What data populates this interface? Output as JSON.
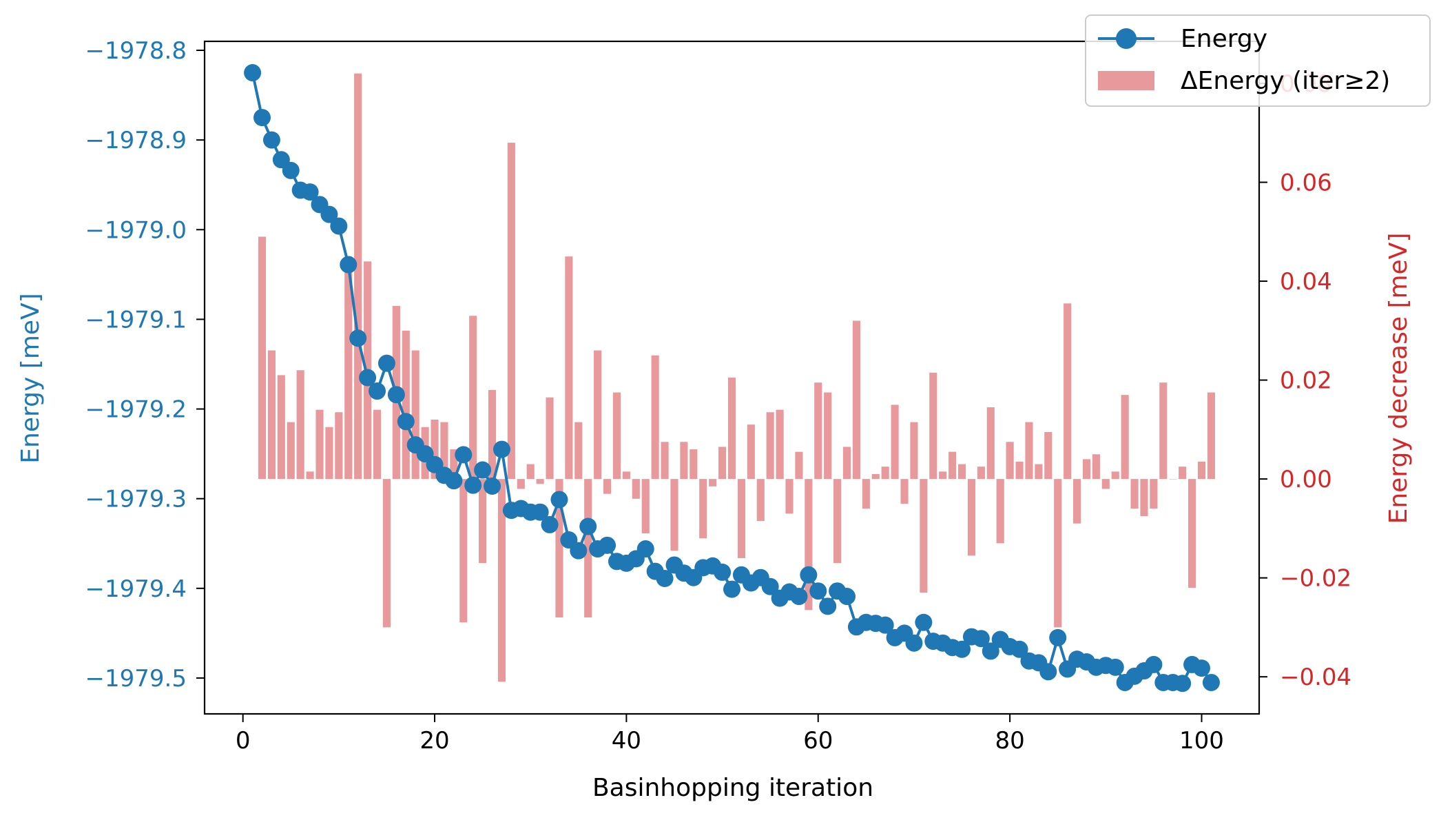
{
  "chart_data": {
    "type": "line",
    "xlabel": "Basinhopping iteration",
    "y_left_label": "Energy [meV]",
    "y_right_label": "Energy decrease [meV]",
    "xlim": [
      -4,
      106
    ],
    "y_left_lim": [
      -1979.54,
      -1978.79
    ],
    "y_right_lim": [
      -0.0475,
      0.0885
    ],
    "x_ticks": [
      0,
      20,
      40,
      60,
      80,
      100
    ],
    "x_tick_labels": [
      "0",
      "20",
      "40",
      "60",
      "80",
      "100"
    ],
    "y_left_ticks": [
      -1978.8,
      -1978.9,
      -1979.0,
      -1979.1,
      -1979.2,
      -1979.3,
      -1979.4,
      -1979.5
    ],
    "y_left_tick_labels": [
      "−1978.8",
      "−1978.9",
      "−1979.0",
      "−1979.1",
      "−1979.2",
      "−1979.3",
      "−1979.4",
      "−1979.5"
    ],
    "y_right_ticks": [
      0.08,
      0.06,
      0.04,
      0.02,
      0.0,
      -0.02,
      -0.04
    ],
    "y_right_tick_labels": [
      "0.08",
      "0.06",
      "0.04",
      "0.02",
      "0.00",
      "−0.02",
      "−0.04"
    ],
    "legend_position": "top-right",
    "grid": false,
    "colors": {
      "energy": "#1f77b4",
      "delta": "#e8999b",
      "left_axis": "#1f77b4",
      "right_axis": "#d62728",
      "axes": "#000000"
    },
    "series": [
      {
        "name": "Energy",
        "kind": "line-markers",
        "x": [
          1,
          2,
          3,
          4,
          5,
          6,
          7,
          8,
          9,
          10,
          11,
          12,
          13,
          14,
          15,
          16,
          17,
          18,
          19,
          20,
          21,
          22,
          23,
          24,
          25,
          26,
          27,
          28,
          29,
          30,
          31,
          32,
          33,
          34,
          35,
          36,
          37,
          38,
          39,
          40,
          41,
          42,
          43,
          44,
          45,
          46,
          47,
          48,
          49,
          50,
          51,
          52,
          53,
          54,
          55,
          56,
          57,
          58,
          59,
          60,
          61,
          62,
          63,
          64,
          65,
          66,
          67,
          68,
          69,
          70,
          71,
          72,
          73,
          74,
          75,
          76,
          77,
          78,
          79,
          80,
          81,
          82,
          83,
          84,
          85,
          86,
          87,
          88,
          89,
          90,
          91,
          92,
          93,
          94,
          95,
          96,
          97,
          98,
          99,
          100,
          101
        ],
        "values": [
          -1978.825,
          -1978.875,
          -1978.9,
          -1978.922,
          -1978.934,
          -1978.956,
          -1978.958,
          -1978.972,
          -1978.983,
          -1978.996,
          -1979.039,
          -1979.121,
          -1979.165,
          -1979.18,
          -1979.149,
          -1979.184,
          -1979.214,
          -1979.24,
          -1979.25,
          -1979.262,
          -1979.274,
          -1979.28,
          -1979.251,
          -1979.285,
          -1979.268,
          -1979.286,
          -1979.245,
          -1979.313,
          -1979.311,
          -1979.315,
          -1979.315,
          -1979.329,
          -1979.301,
          -1979.346,
          -1979.358,
          -1979.331,
          -1979.356,
          -1979.352,
          -1979.37,
          -1979.372,
          -1979.367,
          -1979.356,
          -1979.381,
          -1979.389,
          -1979.374,
          -1979.383,
          -1979.388,
          -1979.377,
          -1979.375,
          -1979.382,
          -1979.401,
          -1979.385,
          -1979.394,
          -1979.388,
          -1979.398,
          -1979.411,
          -1979.404,
          -1979.409,
          -1979.385,
          -1979.403,
          -1979.42,
          -1979.403,
          -1979.409,
          -1979.443,
          -1979.438,
          -1979.439,
          -1979.441,
          -1979.455,
          -1979.45,
          -1979.461,
          -1979.438,
          -1979.459,
          -1979.461,
          -1979.466,
          -1979.468,
          -1979.454,
          -1979.456,
          -1979.47,
          -1979.457,
          -1979.465,
          -1979.468,
          -1979.481,
          -1979.483,
          -1979.493,
          -1979.455,
          -1979.49,
          -1979.479,
          -1979.482,
          -1979.488,
          -1979.486,
          -1979.488,
          -1979.505,
          -1979.498,
          -1979.492,
          -1979.485,
          -1979.505,
          -1979.505,
          -1979.506,
          -1979.485,
          -1979.489,
          -1979.505
        ]
      },
      {
        "name": "ΔEnergy (iter≥2)",
        "kind": "bar",
        "axis": "right",
        "x": [
          2,
          3,
          4,
          5,
          6,
          7,
          8,
          9,
          10,
          11,
          12,
          13,
          14,
          15,
          16,
          17,
          18,
          19,
          20,
          21,
          22,
          23,
          24,
          25,
          26,
          27,
          28,
          29,
          30,
          31,
          32,
          33,
          34,
          35,
          36,
          37,
          38,
          39,
          40,
          41,
          42,
          43,
          44,
          45,
          46,
          47,
          48,
          49,
          50,
          51,
          52,
          53,
          54,
          55,
          56,
          57,
          58,
          59,
          60,
          61,
          62,
          63,
          64,
          65,
          66,
          67,
          68,
          69,
          70,
          71,
          72,
          73,
          74,
          75,
          76,
          77,
          78,
          79,
          80,
          81,
          82,
          83,
          84,
          85,
          86,
          87,
          88,
          89,
          90,
          91,
          92,
          93,
          94,
          95,
          96,
          97,
          98,
          99,
          100,
          101
        ],
        "values": [
          0.049,
          0.026,
          0.021,
          0.0115,
          0.022,
          0.0015,
          0.014,
          0.0105,
          0.0135,
          0.043,
          0.082,
          0.044,
          0.014,
          -0.03,
          0.035,
          0.03,
          0.026,
          0.0105,
          0.012,
          0.0115,
          0.006,
          -0.029,
          0.033,
          -0.017,
          0.018,
          -0.041,
          0.068,
          -0.002,
          0.003,
          -0.001,
          0.0165,
          -0.028,
          0.045,
          0.0115,
          -0.028,
          0.026,
          -0.003,
          0.0175,
          0.0015,
          -0.004,
          -0.011,
          0.025,
          0.0075,
          -0.0145,
          0.0075,
          0.006,
          -0.012,
          -0.0015,
          0.0065,
          0.0205,
          -0.016,
          0.011,
          -0.0085,
          0.0135,
          0.014,
          -0.007,
          0.0055,
          -0.0265,
          0.0195,
          0.0175,
          -0.017,
          0.0065,
          0.032,
          -0.006,
          0.001,
          0.0025,
          0.015,
          -0.005,
          0.0115,
          -0.023,
          0.0215,
          0.0015,
          0.0055,
          0.003,
          -0.0155,
          0.0025,
          0.0145,
          -0.013,
          0.0075,
          0.0035,
          0.0115,
          0.003,
          0.0095,
          -0.03,
          0.0355,
          -0.009,
          0.004,
          0.005,
          -0.002,
          0.0015,
          0.017,
          -0.006,
          -0.0075,
          -0.006,
          0.0195,
          0.0,
          0.0025,
          -0.022,
          0.0035,
          0.0175
        ]
      }
    ]
  }
}
